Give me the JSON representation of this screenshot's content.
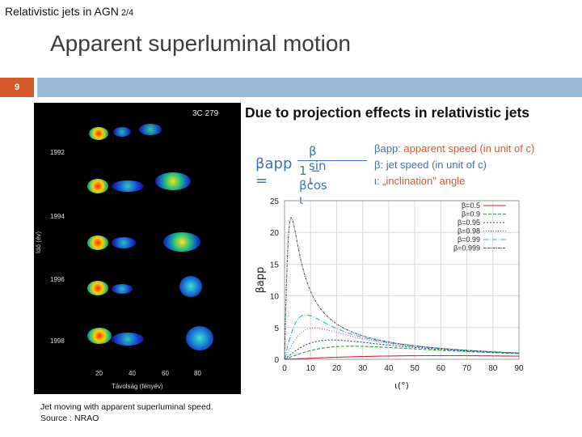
{
  "header": {
    "deck_title": "Relativistic jets in AGN",
    "page_fraction": "2/4"
  },
  "slide": {
    "title": "Apparent superluminal motion",
    "number": "9"
  },
  "image_panel": {
    "source_name": "3C 279",
    "years": [
      "1992",
      "1994",
      "1996",
      "1998"
    ],
    "y_axis_title": "Idő (év)",
    "x_axis_title": "Távolság (fényév)",
    "x_ticks": [
      "20",
      "40",
      "60",
      "80"
    ]
  },
  "caption": {
    "line1": "Jet moving with apparent superluminal speed.",
    "line2": "Source : NRAO"
  },
  "text": {
    "headline": "Due to projection effects in relativistic jets",
    "formula_lhs": "βapp =",
    "formula_num": "β sin ι",
    "formula_den": "1 − βcos ι",
    "def_app_sym": "βapp",
    "def_app": ": apparent speed (in unit of c)",
    "def_beta_sym": "β",
    "def_beta": ": jet speed (in unit of c)",
    "def_iota_sym": "ι",
    "def_iota": ": „inclination\" angle"
  },
  "chart_data": {
    "type": "line",
    "xlabel": "ι(°)",
    "ylabel": "βapp",
    "xlim": [
      0,
      90
    ],
    "ylim": [
      0,
      25
    ],
    "x_ticks": [
      0,
      10,
      20,
      30,
      40,
      50,
      60,
      70,
      80,
      90
    ],
    "y_ticks": [
      0,
      5,
      10,
      15,
      20,
      25
    ],
    "legend_position": "top-right",
    "series": [
      {
        "name": "β=0.5",
        "color": "#d62728",
        "dash": ""
      },
      {
        "name": "β=0.9",
        "color": "#2ca02c",
        "dash": "4,2"
      },
      {
        "name": "β=0.95",
        "color": "#1f3fbf",
        "dash": "2,2"
      },
      {
        "name": "β=0.98",
        "color": "#cc33cc",
        "dash": "1,2"
      },
      {
        "name": "β=0.99",
        "color": "#17becf",
        "dash": "6,2,1,2"
      },
      {
        "name": "β=0.999",
        "color": "#555555",
        "dash": "3,1,1,1"
      }
    ]
  }
}
